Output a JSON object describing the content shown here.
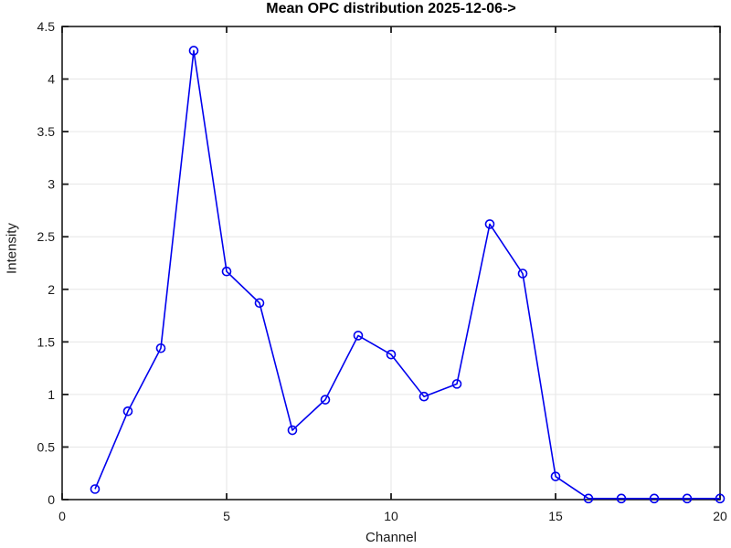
{
  "chart_data": {
    "type": "line",
    "title": "Mean OPC distribution 2025-12-06->",
    "xlabel": "Channel",
    "ylabel": "Intensity",
    "x": [
      1,
      2,
      3,
      4,
      5,
      6,
      7,
      8,
      9,
      10,
      11,
      12,
      13,
      14,
      15,
      16,
      17,
      18,
      19,
      20
    ],
    "values": [
      0.1,
      0.84,
      1.44,
      4.27,
      2.17,
      1.87,
      0.66,
      0.95,
      1.56,
      1.38,
      0.98,
      1.1,
      2.62,
      2.15,
      0.22,
      0.01,
      0.01,
      0.01,
      0.01,
      0.01
    ],
    "xlim": [
      0,
      20
    ],
    "ylim": [
      0,
      4.5
    ],
    "xticks": [
      0,
      5,
      10,
      15,
      20
    ],
    "yticks": [
      0,
      0.5,
      1,
      1.5,
      2,
      2.5,
      3,
      3.5,
      4,
      4.5
    ],
    "grid": true,
    "legend": null,
    "marker": "circle",
    "line_color": "#0000ee",
    "marker_color": "#0000ee",
    "grid_color": "#e6e6e6",
    "axis_color": "#1a1a1a",
    "background_color": "#ffffff"
  }
}
